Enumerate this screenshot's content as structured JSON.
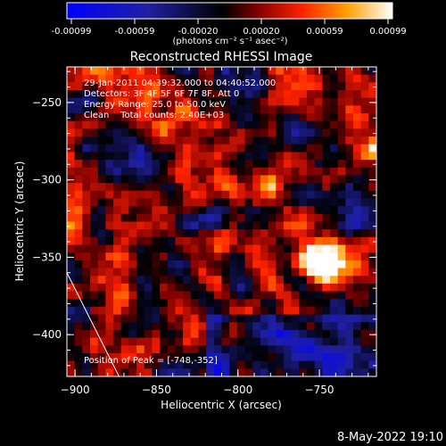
{
  "colorbar": {
    "ticks": [
      "-0.00099",
      "-0.00059",
      "-0.00020",
      "0.00020",
      "0.00059",
      "0.00099"
    ],
    "units": "(photons cm⁻² s⁻¹ asec⁻²)",
    "stops": [
      "#0000ff",
      "#2020a0",
      "#000000",
      "#7a0000",
      "#ff2000",
      "#ffa000",
      "#ffffff"
    ]
  },
  "chart_data": {
    "type": "heatmap",
    "title": "Reconstructed RHESSI Image",
    "xlabel": "Heliocentric X (arcsec)",
    "ylabel": "Heliocentric Y (arcsec)",
    "xlim": [
      -905,
      -715
    ],
    "ylim": [
      -427,
      -227
    ],
    "xticks": [
      -900,
      -850,
      -800,
      -750
    ],
    "yticks": [
      -250,
      -300,
      -350,
      -400
    ],
    "value_range": [
      -0.00099,
      0.00099
    ],
    "peak": [
      -748,
      -352
    ],
    "limb_line": [
      [
        -905,
        -360
      ],
      [
        -873,
        -427
      ]
    ],
    "annotations": [
      "29-Jan-2011 04:39:32.000 to 04:40:52.000",
      "Detectors: 3F 4F 5F 6F 7F 8F, Att 0",
      "Energy Range: 25.0 to 50.0 keV",
      "Clean    Total counts: 2.40E+03"
    ],
    "peak_label": "Position of Peak = [-748,-352]"
  },
  "footer": {
    "date": "8-May-2022 19:10"
  }
}
